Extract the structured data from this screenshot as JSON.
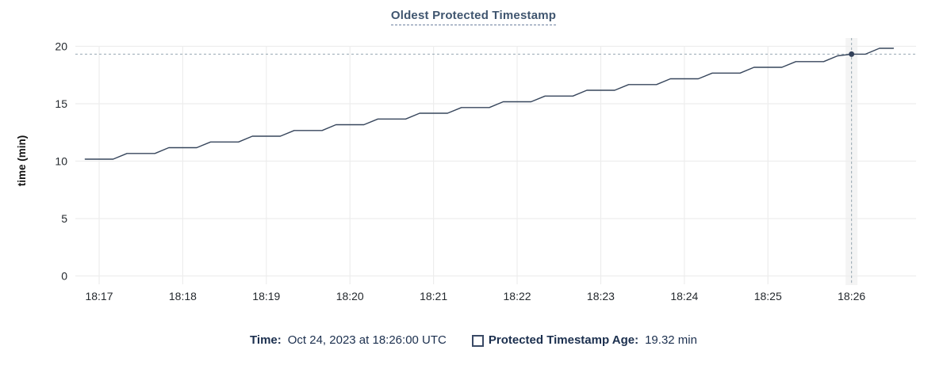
{
  "header": {
    "title": "Oldest Protected Timestamp"
  },
  "footer": {
    "time_label": "Time:",
    "time_value": "Oct 24, 2023 at 18:26:00 UTC",
    "series_label": "Protected Timestamp Age:",
    "series_value": "19.32 min"
  },
  "colors": {
    "line": "#37465c",
    "dot": "#33415a",
    "grid": "#ededed",
    "crosshair": "#97a8b2",
    "hover_band": "#f4f4f4",
    "tick_text": "#24292e",
    "axis_title_text": "#111111",
    "title_text": "#3f556f",
    "legend_text": "#1b2f4e"
  },
  "chart_data": {
    "type": "line",
    "title": "Oldest Protected Timestamp",
    "xlabel": "",
    "ylabel": "time (min)",
    "ylim": [
      0,
      20
    ],
    "yticks": [
      0,
      5,
      10,
      15,
      20
    ],
    "xticks": [
      "18:17",
      "18:18",
      "18:19",
      "18:20",
      "18:21",
      "18:22",
      "18:23",
      "18:24",
      "18:25",
      "18:26"
    ],
    "grid": true,
    "legend_position": "bottom",
    "series": [
      {
        "name": "Protected Timestamp Age",
        "unit": "min",
        "x": [
          "18:16:50",
          "18:17:00",
          "18:17:10",
          "18:17:20",
          "18:17:30",
          "18:17:40",
          "18:17:50",
          "18:18:00",
          "18:18:10",
          "18:18:20",
          "18:18:30",
          "18:18:40",
          "18:18:50",
          "18:19:00",
          "18:19:10",
          "18:19:20",
          "18:19:30",
          "18:19:40",
          "18:19:50",
          "18:20:00",
          "18:20:10",
          "18:20:20",
          "18:20:30",
          "18:20:40",
          "18:20:50",
          "18:21:00",
          "18:21:10",
          "18:21:20",
          "18:21:30",
          "18:21:40",
          "18:21:50",
          "18:22:00",
          "18:22:10",
          "18:22:20",
          "18:22:30",
          "18:22:40",
          "18:22:50",
          "18:23:00",
          "18:23:10",
          "18:23:20",
          "18:23:30",
          "18:23:40",
          "18:23:50",
          "18:24:00",
          "18:24:10",
          "18:24:20",
          "18:24:30",
          "18:24:40",
          "18:24:50",
          "18:25:00",
          "18:25:10",
          "18:25:20",
          "18:25:30",
          "18:25:40",
          "18:25:50",
          "18:26:00",
          "18:26:10",
          "18:26:20",
          "18:26:30"
        ],
        "values": [
          10.17,
          10.17,
          10.17,
          10.67,
          10.67,
          10.67,
          11.17,
          11.17,
          11.17,
          11.67,
          11.67,
          11.67,
          12.17,
          12.17,
          12.17,
          12.67,
          12.67,
          12.67,
          13.17,
          13.17,
          13.17,
          13.67,
          13.67,
          13.67,
          14.17,
          14.17,
          14.17,
          14.67,
          14.67,
          14.67,
          15.17,
          15.17,
          15.17,
          15.67,
          15.67,
          15.67,
          16.17,
          16.17,
          16.17,
          16.67,
          16.67,
          16.67,
          17.17,
          17.17,
          17.17,
          17.67,
          17.67,
          17.67,
          18.17,
          18.17,
          18.17,
          18.67,
          18.67,
          18.67,
          19.17,
          19.32,
          19.32,
          19.83,
          19.83
        ]
      }
    ],
    "hover": {
      "x": "18:26:00",
      "value": 19.32,
      "time_display": "Oct 24, 2023 at 18:26:00 UTC",
      "value_display": "19.32 min"
    }
  }
}
